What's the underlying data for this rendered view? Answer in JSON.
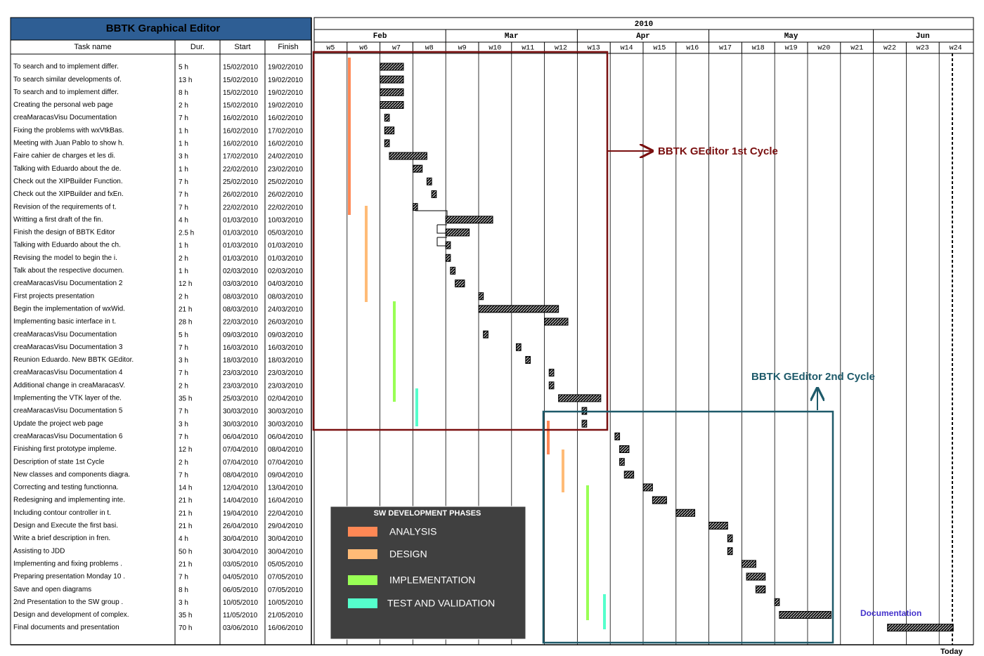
{
  "title": "BBTK Graphical Editor",
  "columns": {
    "task": "Task name",
    "dur": "Dur.",
    "start": "Start",
    "finish": "Finish"
  },
  "year": "2010",
  "months": [
    {
      "label": "Feb",
      "from": "w5",
      "to": "w8"
    },
    {
      "label": "Mar",
      "from": "w9",
      "to": "w12"
    },
    {
      "label": "Apr",
      "from": "w13",
      "to": "w16"
    },
    {
      "label": "May",
      "from": "w17",
      "to": "w21"
    },
    {
      "label": "Jun",
      "from": "w22",
      "to": "w24"
    }
  ],
  "weeks": [
    "w5",
    "w6",
    "w7",
    "w8",
    "w9",
    "w10",
    "w11",
    "w12",
    "w13",
    "w14",
    "w15",
    "w16",
    "w17",
    "w18",
    "w19",
    "w20",
    "w21",
    "w22",
    "w23",
    "w24"
  ],
  "today_label": "Today",
  "annotations": {
    "cycle1": "BBTK GEditor 1st Cycle",
    "cycle2": "BBTK GEditor 2nd Cycle",
    "documentation": "Documentation"
  },
  "legend": {
    "title": "SW DEVELOPMENT PHASES",
    "items": [
      {
        "label": "ANALYSIS",
        "color": "#ff8855"
      },
      {
        "label": "DESIGN",
        "color": "#ffbb77"
      },
      {
        "label": "IMPLEMENTATION",
        "color": "#99ff55"
      },
      {
        "label": "TEST AND VALIDATION",
        "color": "#55ffcc"
      }
    ]
  },
  "colors": {
    "header_bg": "#2e5e94",
    "cycle1_border": "#7a1010",
    "cycle2_border": "#1e5a6a",
    "documentation": "#4433cc",
    "legend_bg": "#404040"
  },
  "chart_data": {
    "type": "gantt",
    "title": "BBTK Graphical Editor",
    "x_axis": {
      "unit": "week",
      "range": [
        "w5",
        "w24"
      ],
      "year": "2010"
    },
    "tasks": [
      {
        "name": "To search and to implement differ.",
        "dur": "5 h",
        "start": "15/02/2010",
        "finish": "19/02/2010"
      },
      {
        "name": "To search similar developments of.",
        "dur": "13 h",
        "start": "15/02/2010",
        "finish": "19/02/2010"
      },
      {
        "name": "To search and to implement differ.",
        "dur": "8 h",
        "start": "15/02/2010",
        "finish": "19/02/2010"
      },
      {
        "name": "Creating the personal web page",
        "dur": "2 h",
        "start": "15/02/2010",
        "finish": "19/02/2010"
      },
      {
        "name": "creaMaracasVisu Documentation",
        "dur": "7 h",
        "start": "16/02/2010",
        "finish": "16/02/2010"
      },
      {
        "name": "Fixing the problems with wxVtkBas.",
        "dur": "1 h",
        "start": "16/02/2010",
        "finish": "17/02/2010"
      },
      {
        "name": "Meeting with Juan Pablo to show h.",
        "dur": "1 h",
        "start": "16/02/2010",
        "finish": "16/02/2010"
      },
      {
        "name": "Faire cahier de charges et les di.",
        "dur": "3 h",
        "start": "17/02/2010",
        "finish": "24/02/2010"
      },
      {
        "name": "Talking with Eduardo about the de.",
        "dur": "1 h",
        "start": "22/02/2010",
        "finish": "23/02/2010"
      },
      {
        "name": " Check out the XIPBuilder Function.",
        "dur": "7 h",
        "start": "25/02/2010",
        "finish": "25/02/2010"
      },
      {
        "name": " Check out the XIPBuilder and fxEn.",
        "dur": "7 h",
        "start": "26/02/2010",
        "finish": "26/02/2010"
      },
      {
        "name": "Revision of the requirements of t.",
        "dur": "7 h",
        "start": "22/02/2010",
        "finish": "22/02/2010"
      },
      {
        "name": "Writting a first draft of the fin.",
        "dur": "4 h",
        "start": "01/03/2010",
        "finish": "10/03/2010"
      },
      {
        "name": "Finish the design of BBTK Editor",
        "dur": "2.5 h",
        "start": "01/03/2010",
        "finish": "05/03/2010"
      },
      {
        "name": "Talking with Eduardo about the ch.",
        "dur": "1 h",
        "start": "01/03/2010",
        "finish": "01/03/2010"
      },
      {
        "name": "Revising the model to begin the i.",
        "dur": "2 h",
        "start": "01/03/2010",
        "finish": "01/03/2010"
      },
      {
        "name": "Talk about the respective documen.",
        "dur": "1 h",
        "start": "02/03/2010",
        "finish": "02/03/2010"
      },
      {
        "name": "creaMaracasVisu Documentation 2",
        "dur": "12 h",
        "start": "03/03/2010",
        "finish": "04/03/2010"
      },
      {
        "name": "First projects presentation",
        "dur": "2 h",
        "start": "08/03/2010",
        "finish": "08/03/2010"
      },
      {
        "name": "Begin the implementation of wxWid.",
        "dur": "21 h",
        "start": "08/03/2010",
        "finish": "24/03/2010"
      },
      {
        "name": " Implementing basic interface in t.",
        "dur": "28 h",
        "start": "22/03/2010",
        "finish": "26/03/2010"
      },
      {
        "name": "creaMaracasVisu Documentation",
        "dur": "5 h",
        "start": "09/03/2010",
        "finish": "09/03/2010"
      },
      {
        "name": "creaMaracasVisu Documentation 3",
        "dur": "7 h",
        "start": "16/03/2010",
        "finish": "16/03/2010"
      },
      {
        "name": "Reunion Eduardo. New BBTK GEditor.",
        "dur": "3 h",
        "start": "18/03/2010",
        "finish": "18/03/2010"
      },
      {
        "name": "creaMaracasVisu Documentation 4",
        "dur": "7 h",
        "start": "23/03/2010",
        "finish": "23/03/2010"
      },
      {
        "name": "Additional change in creaMaracasV.",
        "dur": "2 h",
        "start": "23/03/2010",
        "finish": "23/03/2010"
      },
      {
        "name": "Implementing the VTK layer of the.",
        "dur": "35 h",
        "start": "25/03/2010",
        "finish": "02/04/2010"
      },
      {
        "name": "creaMaracasVisu Documentation 5",
        "dur": "7 h",
        "start": "30/03/2010",
        "finish": "30/03/2010"
      },
      {
        "name": "Update the project web page",
        "dur": "3 h",
        "start": "30/03/2010",
        "finish": "30/03/2010"
      },
      {
        "name": "creaMaracasVisu Documentation 6",
        "dur": "7 h",
        "start": "06/04/2010",
        "finish": "06/04/2010"
      },
      {
        "name": "Finishing first prototype impleme.",
        "dur": "12 h",
        "start": "07/04/2010",
        "finish": "08/04/2010"
      },
      {
        "name": "Description of state 1st Cycle",
        "dur": "2 h",
        "start": "07/04/2010",
        "finish": "07/04/2010"
      },
      {
        "name": "New classes and components diagra.",
        "dur": "7 h",
        "start": "08/04/2010",
        "finish": "09/04/2010"
      },
      {
        "name": "Correcting and testing functionna.",
        "dur": "14 h",
        "start": "12/04/2010",
        "finish": "13/04/2010"
      },
      {
        "name": "Redesigning and implementing inte.",
        "dur": "21 h",
        "start": "14/04/2010",
        "finish": "16/04/2010"
      },
      {
        "name": "Including contour controller in t.",
        "dur": "21 h",
        "start": "19/04/2010",
        "finish": "22/04/2010"
      },
      {
        "name": "Design and Execute the first basi.",
        "dur": "21 h",
        "start": "26/04/2010",
        "finish": "29/04/2010"
      },
      {
        "name": "Write a brief description in fren.",
        "dur": "4 h",
        "start": "30/04/2010",
        "finish": "30/04/2010"
      },
      {
        "name": "Assisting to JDD",
        "dur": "50 h",
        "start": "30/04/2010",
        "finish": "30/04/2010"
      },
      {
        "name": "Implementing and fixing problems .",
        "dur": "21 h",
        "start": "03/05/2010",
        "finish": "05/05/2010"
      },
      {
        "name": "Preparing presentation Monday 10 .",
        "dur": "7 h",
        "start": "04/05/2010",
        "finish": "07/05/2010"
      },
      {
        "name": "Save and open diagrams",
        "dur": "8 h",
        "start": "06/05/2010",
        "finish": "07/05/2010"
      },
      {
        "name": "2nd Presentation to the SW group .",
        "dur": "3 h",
        "start": "10/05/2010",
        "finish": "10/05/2010"
      },
      {
        "name": "Design and development of complex.",
        "dur": "35 h",
        "start": "11/05/2010",
        "finish": "21/05/2010"
      },
      {
        "name": "Final documents and presentation",
        "dur": "70 h",
        "start": "03/06/2010",
        "finish": "16/06/2010"
      }
    ],
    "phase_bars": [
      {
        "phase": "ANALYSIS",
        "color": "#ff8855",
        "from": "01/02/2010",
        "to": "01/03/2010"
      },
      {
        "phase": "DESIGN",
        "color": "#ffbb77",
        "from": "03/02/2010",
        "to": "08/03/2010"
      },
      {
        "phase": "IMPLEMENTATION",
        "color": "#99ff55",
        "from": "15/02/2010",
        "to": "23/03/2010"
      },
      {
        "phase": "TEST AND VALIDATION",
        "color": "#55ffcc",
        "from": "25/02/2010",
        "to": "30/03/2010"
      },
      {
        "phase": "ANALYSIS",
        "color": "#ff8855",
        "from": "01/04/2010",
        "to": "06/04/2010"
      },
      {
        "phase": "DESIGN",
        "color": "#ffbb77",
        "from": "07/04/2010",
        "to": "12/04/2010"
      },
      {
        "phase": "IMPLEMENTATION",
        "color": "#99ff55",
        "from": "12/04/2010",
        "to": "11/05/2010"
      },
      {
        "phase": "TEST AND VALIDATION",
        "color": "#55ffcc",
        "from": "10/05/2010",
        "to": "11/05/2010"
      }
    ],
    "cycles": [
      {
        "label": "BBTK GEditor 1st Cycle",
        "from_row": 1,
        "to_row": 29
      },
      {
        "label": "BBTK GEditor 2nd Cycle",
        "from_row": 29,
        "to_row": 45
      }
    ],
    "today": "16/06/2010"
  }
}
